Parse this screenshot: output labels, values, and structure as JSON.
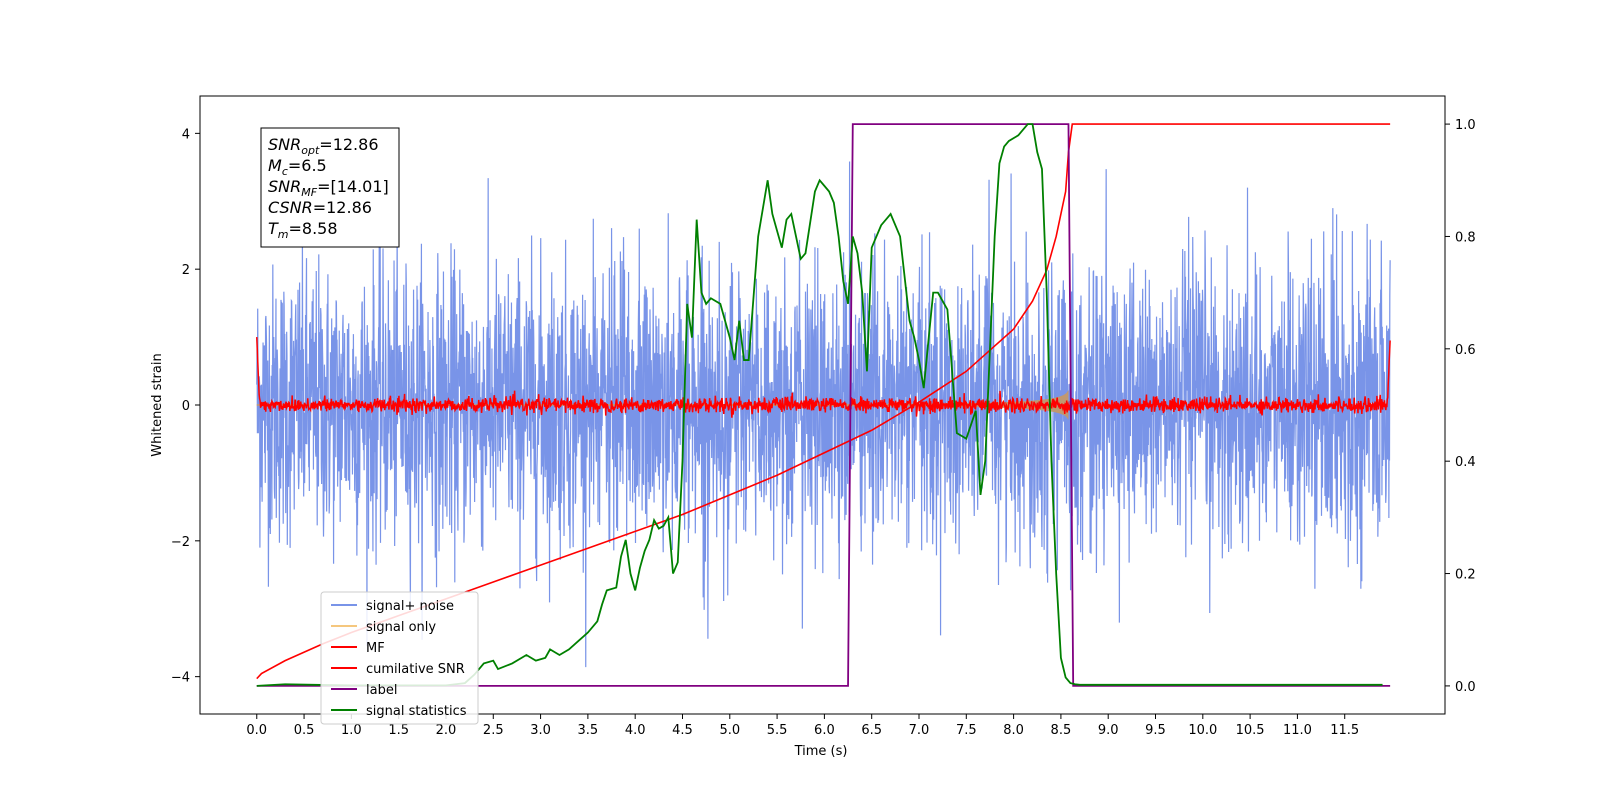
{
  "chart_data": {
    "type": "line",
    "xlabel": "Time (s)",
    "ylabel": "Whitened strain",
    "xlim": [
      -0.6,
      12.56
    ],
    "ylim": [
      -4.55,
      4.55
    ],
    "ylim_right": [
      -0.05,
      1.05
    ],
    "x_ticks": [
      0.0,
      0.5,
      1.0,
      1.5,
      2.0,
      2.5,
      3.0,
      3.5,
      4.0,
      4.5,
      5.0,
      5.5,
      6.0,
      6.5,
      7.0,
      7.5,
      8.0,
      8.5,
      9.0,
      9.5,
      10.0,
      10.5,
      11.0,
      11.5
    ],
    "x_tick_labels": [
      "0.0",
      "0.5",
      "1.0",
      "1.5",
      "2.0",
      "2.5",
      "3.0",
      "3.5",
      "4.0",
      "4.5",
      "5.0",
      "5.5",
      "6.0",
      "6.5",
      "7.0",
      "7.5",
      "8.0",
      "8.5",
      "9.0",
      "9.5",
      "10.0",
      "10.5",
      "11.0",
      "11.5"
    ],
    "y_ticks": [
      -4,
      -2,
      0,
      2,
      4
    ],
    "y_tick_labels": [
      "−4",
      "−2",
      "0",
      "2",
      "4"
    ],
    "y_ticks_right": [
      0.0,
      0.2,
      0.4,
      0.6,
      0.8,
      1.0
    ],
    "y_tick_labels_right": [
      "0.0",
      "0.2",
      "0.4",
      "0.6",
      "0.8",
      "1.0"
    ],
    "grid": false,
    "legend_position": "lower-left",
    "annotation": {
      "lines": [
        {
          "sym": "SNR",
          "sub": "opt",
          "text": "=12.86"
        },
        {
          "sym": "M",
          "sub": "c",
          "text": "=6.5"
        },
        {
          "sym": "SNR",
          "sub": "MF",
          "text": "=[14.01]"
        },
        {
          "sym": "CSNR",
          "sub": "",
          "text": "=12.86"
        },
        {
          "sym": "T",
          "sub": "m",
          "text": "=8.58"
        }
      ]
    },
    "series": [
      {
        "name": "signal+ noise",
        "color": "#7994e8",
        "axis": "left",
        "kind": "noise",
        "x_range": [
          0.0,
          11.98
        ],
        "std": 1.02,
        "peak_high": 4.05,
        "peak_low": -4.1
      },
      {
        "name": "signal only",
        "color": "#f5c77e",
        "fill_color": "#c09870",
        "axis": "left",
        "kind": "chirp",
        "x_range": [
          0.0,
          8.58
        ],
        "start_amplitude": 0.012,
        "merger_time": 8.58,
        "peak_amplitude": 0.85
      },
      {
        "name": "MF",
        "color": "#ff0000",
        "axis": "left",
        "kind": "mf_noise",
        "x_range": [
          0.0,
          11.98
        ],
        "std": 0.055,
        "start_value": 1.0,
        "end_value": 0.95
      },
      {
        "name": "cumilative SNR",
        "color": "#ff0000",
        "axis": "right",
        "x": [
          0.0,
          0.05,
          0.3,
          0.7,
          1.0,
          1.5,
          2.0,
          2.5,
          3.0,
          3.5,
          4.0,
          4.5,
          5.0,
          5.5,
          6.0,
          6.5,
          7.0,
          7.5,
          8.0,
          8.2,
          8.35,
          8.45,
          8.55,
          8.58,
          8.62,
          11.98
        ],
        "y": [
          0.013,
          0.022,
          0.045,
          0.075,
          0.095,
          0.125,
          0.155,
          0.185,
          0.215,
          0.245,
          0.275,
          0.305,
          0.34,
          0.375,
          0.415,
          0.455,
          0.505,
          0.56,
          0.635,
          0.685,
          0.74,
          0.8,
          0.88,
          0.95,
          1.0,
          1.0
        ]
      },
      {
        "name": "label",
        "color": "#800080",
        "axis": "right",
        "x": [
          0.0,
          6.25,
          6.3,
          8.58,
          8.63,
          11.98
        ],
        "y": [
          0.0,
          0.0,
          1.0,
          1.0,
          0.0,
          0.0
        ]
      },
      {
        "name": "signal statistics",
        "color": "#008000",
        "axis": "right",
        "x": [
          0.0,
          0.3,
          0.6,
          1.0,
          1.5,
          2.0,
          2.2,
          2.3,
          2.4,
          2.5,
          2.55,
          2.7,
          2.85,
          2.95,
          3.05,
          3.1,
          3.2,
          3.3,
          3.4,
          3.5,
          3.6,
          3.65,
          3.7,
          3.8,
          3.85,
          3.9,
          3.95,
          4.0,
          4.05,
          4.1,
          4.15,
          4.2,
          4.25,
          4.3,
          4.35,
          4.4,
          4.45,
          4.5,
          4.55,
          4.6,
          4.65,
          4.7,
          4.75,
          4.8,
          4.9,
          5.0,
          5.05,
          5.1,
          5.15,
          5.2,
          5.3,
          5.35,
          5.4,
          5.45,
          5.5,
          5.55,
          5.6,
          5.65,
          5.7,
          5.75,
          5.8,
          5.9,
          5.95,
          6.0,
          6.05,
          6.1,
          6.15,
          6.2,
          6.25,
          6.3,
          6.35,
          6.4,
          6.45,
          6.5,
          6.6,
          6.7,
          6.8,
          6.9,
          6.95,
          7.0,
          7.05,
          7.15,
          7.2,
          7.3,
          7.4,
          7.5,
          7.6,
          7.65,
          7.7,
          7.8,
          7.85,
          7.9,
          7.95,
          8.05,
          8.1,
          8.15,
          8.2,
          8.25,
          8.3,
          8.35,
          8.4,
          8.45,
          8.5,
          8.55,
          8.6,
          8.65,
          8.7,
          8.8,
          9.0,
          11.9
        ],
        "y": [
          0.0,
          0.003,
          0.002,
          0.001,
          0.001,
          0.001,
          0.005,
          0.02,
          0.04,
          0.045,
          0.03,
          0.04,
          0.055,
          0.045,
          0.05,
          0.065,
          0.055,
          0.065,
          0.08,
          0.095,
          0.115,
          0.145,
          0.17,
          0.175,
          0.23,
          0.26,
          0.2,
          0.17,
          0.21,
          0.24,
          0.26,
          0.295,
          0.28,
          0.285,
          0.3,
          0.2,
          0.22,
          0.4,
          0.68,
          0.62,
          0.83,
          0.7,
          0.68,
          0.69,
          0.68,
          0.62,
          0.58,
          0.65,
          0.58,
          0.58,
          0.8,
          0.85,
          0.9,
          0.84,
          0.81,
          0.78,
          0.83,
          0.84,
          0.8,
          0.76,
          0.77,
          0.88,
          0.9,
          0.89,
          0.88,
          0.86,
          0.8,
          0.72,
          0.68,
          0.8,
          0.77,
          0.7,
          0.56,
          0.78,
          0.82,
          0.84,
          0.8,
          0.65,
          0.62,
          0.58,
          0.53,
          0.7,
          0.7,
          0.67,
          0.45,
          0.44,
          0.49,
          0.34,
          0.4,
          0.8,
          0.93,
          0.96,
          0.97,
          0.98,
          0.99,
          1.0,
          1.0,
          0.95,
          0.92,
          0.7,
          0.4,
          0.2,
          0.05,
          0.015,
          0.005,
          0.003,
          0.002,
          0.002,
          0.002,
          0.002
        ]
      }
    ]
  }
}
